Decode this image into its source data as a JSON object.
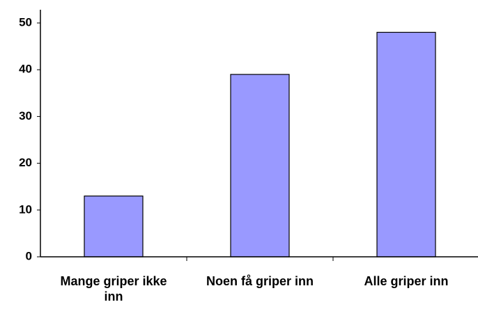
{
  "chart_data": {
    "type": "bar",
    "categories": [
      "Mange griper ikke inn",
      "Noen få griper inn",
      "Alle griper inn"
    ],
    "values": [
      13,
      39,
      48
    ],
    "color": "#9999ff",
    "ylim": [
      0,
      50
    ],
    "yticks": [
      0,
      10,
      20,
      30,
      40,
      50
    ],
    "grid": false
  }
}
